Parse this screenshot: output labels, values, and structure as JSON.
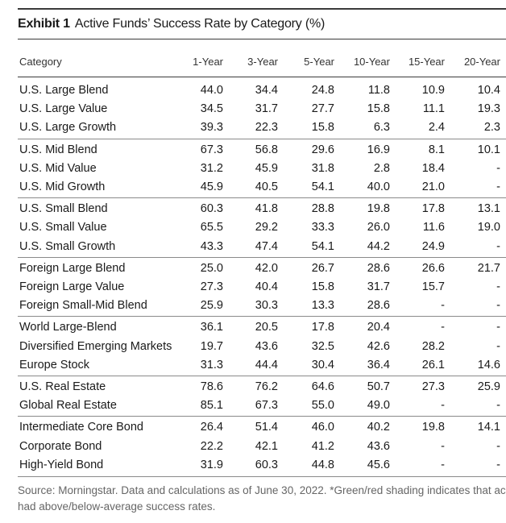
{
  "exhibit": {
    "label": "Exhibit 1",
    "title": "Active Funds’ Success Rate by Category (%)"
  },
  "columns": [
    "Category",
    "1-Year",
    "3-Year",
    "5-Year",
    "10-Year",
    "15-Year",
    "20-Year"
  ],
  "groups": [
    {
      "rows": [
        {
          "category": "U.S. Large Blend",
          "values": [
            "44.0",
            "34.4",
            "24.8",
            "11.8",
            "10.9",
            "10.4"
          ]
        },
        {
          "category": "U.S. Large Value",
          "values": [
            "34.5",
            "31.7",
            "27.7",
            "15.8",
            "11.1",
            "19.3"
          ]
        },
        {
          "category": "U.S. Large Growth",
          "values": [
            "39.3",
            "22.3",
            "15.8",
            "6.3",
            "2.4",
            "2.3"
          ]
        }
      ]
    },
    {
      "rows": [
        {
          "category": "U.S. Mid Blend",
          "values": [
            "67.3",
            "56.8",
            "29.6",
            "16.9",
            "8.1",
            "10.1"
          ]
        },
        {
          "category": "U.S. Mid Value",
          "values": [
            "31.2",
            "45.9",
            "31.8",
            "2.8",
            "18.4",
            "-"
          ]
        },
        {
          "category": "U.S. Mid Growth",
          "values": [
            "45.9",
            "40.5",
            "54.1",
            "40.0",
            "21.0",
            "-"
          ]
        }
      ]
    },
    {
      "rows": [
        {
          "category": "U.S. Small Blend",
          "values": [
            "60.3",
            "41.8",
            "28.8",
            "19.8",
            "17.8",
            "13.1"
          ]
        },
        {
          "category": "U.S. Small Value",
          "values": [
            "65.5",
            "29.2",
            "33.3",
            "26.0",
            "11.6",
            "19.0"
          ]
        },
        {
          "category": "U.S. Small Growth",
          "values": [
            "43.3",
            "47.4",
            "54.1",
            "44.2",
            "24.9",
            "-"
          ]
        }
      ]
    },
    {
      "rows": [
        {
          "category": "Foreign Large Blend",
          "values": [
            "25.0",
            "42.0",
            "26.7",
            "28.6",
            "26.6",
            "21.7"
          ]
        },
        {
          "category": "Foreign Large Value",
          "values": [
            "27.3",
            "40.4",
            "15.8",
            "31.7",
            "15.7",
            "-"
          ]
        },
        {
          "category": "Foreign Small-Mid Blend",
          "values": [
            "25.9",
            "30.3",
            "13.3",
            "28.6",
            "-",
            "-"
          ]
        }
      ]
    },
    {
      "rows": [
        {
          "category": "World Large-Blend",
          "values": [
            "36.1",
            "20.5",
            "17.8",
            "20.4",
            "-",
            "-"
          ]
        },
        {
          "category": "Diversified Emerging Markets",
          "values": [
            "19.7",
            "43.6",
            "32.5",
            "42.6",
            "28.2",
            "-"
          ]
        },
        {
          "category": "Europe Stock",
          "values": [
            "31.3",
            "44.4",
            "30.4",
            "36.4",
            "26.1",
            "14.6"
          ]
        }
      ]
    },
    {
      "rows": [
        {
          "category": "U.S. Real Estate",
          "values": [
            "78.6",
            "76.2",
            "64.6",
            "50.7",
            "27.3",
            "25.9"
          ]
        },
        {
          "category": "Global Real Estate",
          "values": [
            "85.1",
            "67.3",
            "55.0",
            "49.0",
            "-",
            "-"
          ]
        }
      ]
    },
    {
      "rows": [
        {
          "category": "Intermediate Core Bond",
          "values": [
            "26.4",
            "51.4",
            "46.0",
            "40.2",
            "19.8",
            "14.1"
          ]
        },
        {
          "category": "Corporate Bond",
          "values": [
            "22.2",
            "42.1",
            "41.2",
            "43.6",
            "-",
            "-"
          ]
        },
        {
          "category": "High-Yield Bond",
          "values": [
            "31.9",
            "60.3",
            "44.8",
            "45.6",
            "-",
            "-"
          ]
        }
      ]
    }
  ],
  "source": [
    "Source: Morningstar. Data and calculations as of June 30, 2022. *Green/red shading indicates that ac",
    "had above/below-average success rates."
  ]
}
